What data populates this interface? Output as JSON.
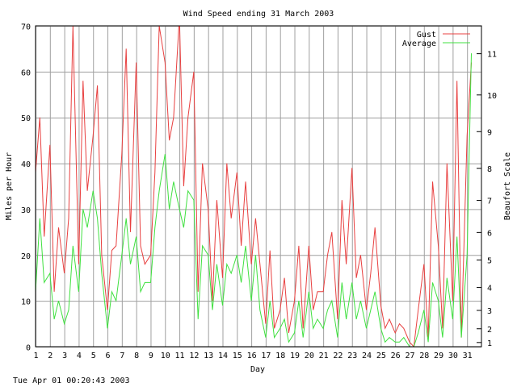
{
  "footer": {
    "timestamp": "Tue Apr 01 00:20:43 2003"
  },
  "chart_data": {
    "type": "line",
    "title": "Wind Speed ending 31 March 2003",
    "xlabel": "Day",
    "ylabel": "Miles per Hour",
    "y2label": "Beaufort Scale",
    "xlim": [
      1,
      32
    ],
    "ylim": [
      0,
      70
    ],
    "x_ticks": [
      "1",
      "2",
      "3",
      "4",
      "5",
      "6",
      "7",
      "8",
      "9",
      "10",
      "11",
      "12",
      "13",
      "14",
      "15",
      "16",
      "17",
      "18",
      "19",
      "20",
      "21",
      "22",
      "23",
      "24",
      "25",
      "26",
      "27",
      "28",
      "29",
      "30",
      "31"
    ],
    "y_ticks": [
      0,
      10,
      20,
      30,
      40,
      50,
      60,
      70
    ],
    "beaufort_ticks": [
      {
        "label": "1",
        "mph": 1
      },
      {
        "label": "2",
        "mph": 4
      },
      {
        "label": "3",
        "mph": 8
      },
      {
        "label": "4",
        "mph": 13
      },
      {
        "label": "5",
        "mph": 19
      },
      {
        "label": "6",
        "mph": 25
      },
      {
        "label": "7",
        "mph": 32
      },
      {
        "label": "8",
        "mph": 39
      },
      {
        "label": "9",
        "mph": 47
      },
      {
        "label": "10",
        "mph": 55
      },
      {
        "label": "11",
        "mph": 64
      }
    ],
    "grid": true,
    "legend_position": "top-right",
    "series": [
      {
        "name": "Gust",
        "color": "#e84040",
        "x": [
          1,
          1.3,
          1.6,
          2,
          2.3,
          2.6,
          3,
          3.3,
          3.6,
          4,
          4.3,
          4.6,
          5,
          5.3,
          5.6,
          6,
          6.3,
          6.6,
          7,
          7.3,
          7.6,
          8,
          8.3,
          8.6,
          9,
          9.3,
          9.6,
          10,
          10.3,
          10.6,
          11,
          11.3,
          11.6,
          12,
          12.3,
          12.6,
          13,
          13.3,
          13.6,
          14,
          14.3,
          14.6,
          15,
          15.3,
          15.6,
          16,
          16.3,
          16.6,
          17,
          17.3,
          17.6,
          18,
          18.3,
          18.6,
          19,
          19.3,
          19.6,
          20,
          20.3,
          20.6,
          21,
          21.3,
          21.6,
          22,
          22.3,
          22.6,
          23,
          23.3,
          23.6,
          24,
          24.3,
          24.6,
          25,
          25.3,
          25.6,
          26,
          26.3,
          26.6,
          27,
          27.3,
          27.6,
          28,
          28.3,
          28.6,
          29,
          29.3,
          29.6,
          30,
          30.3,
          30.6,
          31,
          31.3
        ],
        "values": [
          38,
          50,
          24,
          44,
          12,
          26,
          16,
          28,
          70,
          18,
          58,
          34,
          46,
          57,
          20,
          8,
          21,
          22,
          42,
          65,
          25,
          62,
          22,
          18,
          20,
          38,
          70,
          62,
          45,
          50,
          72,
          35,
          50,
          60,
          12,
          40,
          30,
          10,
          32,
          15,
          40,
          28,
          38,
          22,
          36,
          18,
          28,
          18,
          5,
          21,
          4,
          8,
          15,
          3,
          10,
          22,
          4,
          22,
          8,
          12,
          12,
          20,
          25,
          6,
          32,
          18,
          39,
          15,
          20,
          8,
          16,
          26,
          9,
          4,
          6,
          3,
          5,
          4,
          1,
          0,
          8,
          18,
          2,
          36,
          22,
          4,
          40,
          10,
          58,
          2,
          46,
          62
        ]
      },
      {
        "name": "Average",
        "color": "#40e040",
        "x": [
          1,
          1.3,
          1.6,
          2,
          2.3,
          2.6,
          3,
          3.3,
          3.6,
          4,
          4.3,
          4.6,
          5,
          5.3,
          5.6,
          6,
          6.3,
          6.6,
          7,
          7.3,
          7.6,
          8,
          8.3,
          8.6,
          9,
          9.3,
          9.6,
          10,
          10.3,
          10.6,
          11,
          11.3,
          11.6,
          12,
          12.3,
          12.6,
          13,
          13.3,
          13.6,
          14,
          14.3,
          14.6,
          15,
          15.3,
          15.6,
          16,
          16.3,
          16.6,
          17,
          17.3,
          17.6,
          18,
          18.3,
          18.6,
          19,
          19.3,
          19.6,
          20,
          20.3,
          20.6,
          21,
          21.3,
          21.6,
          22,
          22.3,
          22.6,
          23,
          23.3,
          23.6,
          24,
          24.3,
          24.6,
          25,
          25.3,
          25.6,
          26,
          26.3,
          26.6,
          27,
          27.3,
          27.6,
          28,
          28.3,
          28.6,
          29,
          29.3,
          29.6,
          30,
          30.3,
          30.6,
          31,
          31.3
        ],
        "values": [
          12,
          28,
          14,
          16,
          6,
          10,
          5,
          8,
          22,
          12,
          30,
          26,
          34,
          28,
          16,
          4,
          12,
          10,
          20,
          28,
          18,
          24,
          12,
          14,
          14,
          26,
          34,
          42,
          30,
          36,
          30,
          26,
          34,
          32,
          6,
          22,
          20,
          8,
          18,
          9,
          18,
          16,
          20,
          14,
          22,
          10,
          20,
          8,
          2,
          10,
          2,
          4,
          6,
          1,
          3,
          10,
          2,
          12,
          4,
          6,
          4,
          8,
          10,
          2,
          14,
          6,
          14,
          6,
          10,
          4,
          8,
          12,
          4,
          1,
          2,
          1,
          1,
          2,
          0,
          0,
          3,
          8,
          1,
          14,
          10,
          2,
          15,
          6,
          24,
          2,
          20,
          64
        ]
      }
    ]
  }
}
